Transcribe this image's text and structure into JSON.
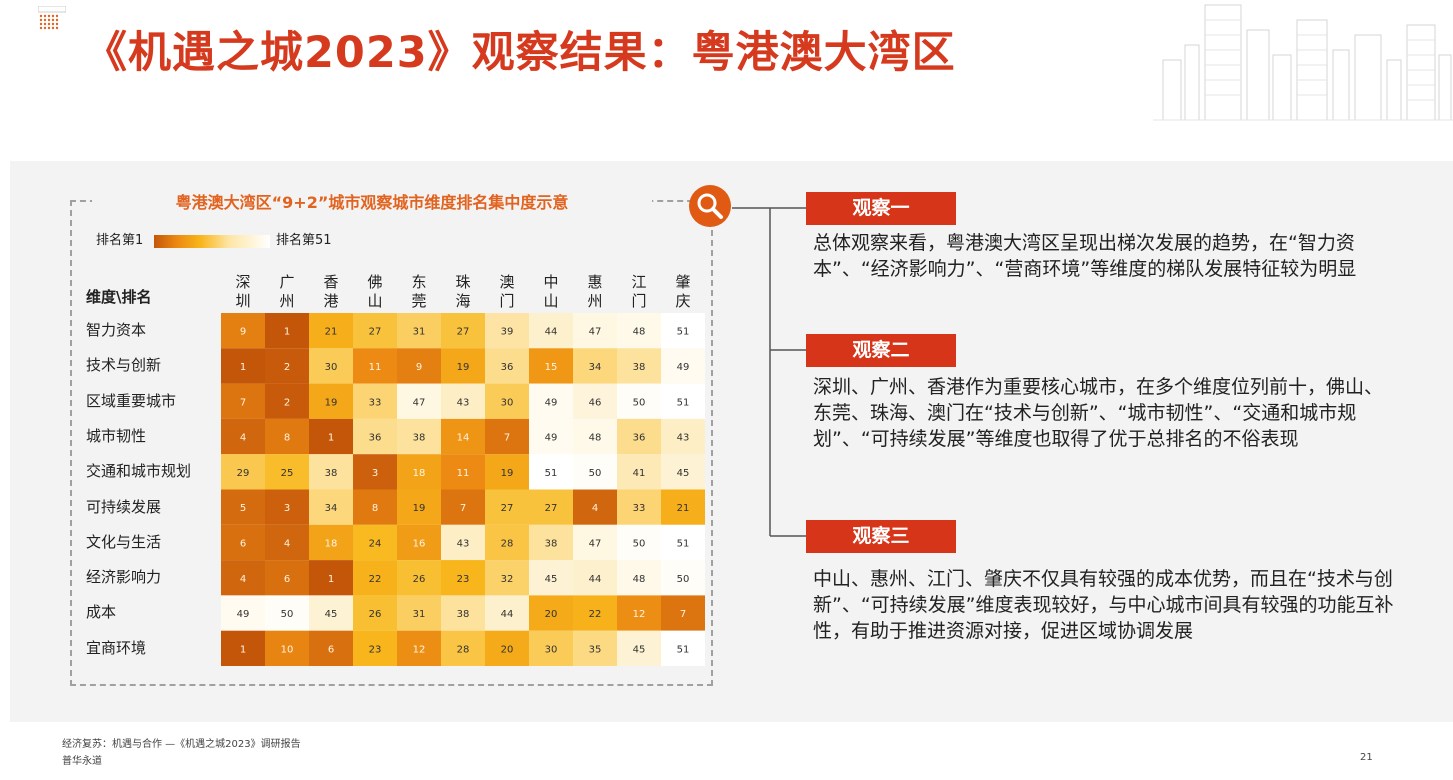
{
  "title": "《机遇之城2023》观察结果：粤港澳大湾区",
  "chart_data": {
    "type": "heatmap",
    "title": "粤港澳大湾区“9+2”城市观察城市维度排名集中度示意",
    "corner_label": "维度\\排名",
    "legend": {
      "first": "排名第1",
      "last": "排名第51"
    },
    "columns": [
      "深圳",
      "广州",
      "香港",
      "佛山",
      "东莞",
      "珠海",
      "澳门",
      "中山",
      "惠州",
      "江门",
      "肇庆"
    ],
    "rows": [
      "智力资本",
      "技术与创新",
      "区域重要城市",
      "城市韧性",
      "交通和城市规划",
      "可持续发展",
      "文化与生活",
      "经济影响力",
      "成本",
      "宜商环境"
    ],
    "values": [
      [
        9,
        1,
        21,
        27,
        31,
        27,
        39,
        44,
        47,
        48,
        51
      ],
      [
        1,
        2,
        30,
        11,
        9,
        19,
        36,
        15,
        34,
        38,
        49
      ],
      [
        7,
        2,
        19,
        33,
        47,
        43,
        30,
        49,
        46,
        50,
        51
      ],
      [
        4,
        8,
        1,
        36,
        38,
        14,
        7,
        49,
        48,
        36,
        43
      ],
      [
        29,
        25,
        38,
        3,
        18,
        11,
        19,
        51,
        50,
        41,
        45
      ],
      [
        5,
        3,
        34,
        8,
        19,
        7,
        27,
        27,
        4,
        33,
        21
      ],
      [
        6,
        4,
        18,
        24,
        16,
        43,
        28,
        38,
        47,
        50,
        51
      ],
      [
        4,
        6,
        1,
        22,
        26,
        23,
        32,
        45,
        44,
        48,
        50
      ],
      [
        49,
        50,
        45,
        26,
        31,
        38,
        44,
        20,
        22,
        12,
        7
      ],
      [
        1,
        10,
        6,
        23,
        12,
        28,
        20,
        30,
        35,
        45,
        51
      ]
    ],
    "scale": [
      1,
      51
    ]
  },
  "observations": [
    {
      "label": "观察一",
      "text": "总体观察来看，粤港澳大湾区呈现出梯次发展的趋势，在“智力资本”、“经济影响力”、“营商环境”等维度的梯队发展特征较为明显"
    },
    {
      "label": "观察二",
      "text": "深圳、广州、香港作为重要核心城市，在多个维度位列前十，佛山、东莞、珠海、澳门在“技术与创新”、“城市韧性”、“交通和城市规划”、“可持续发展”等维度也取得了优于总排名的不俗表现"
    },
    {
      "label": "观察三",
      "text": "中山、惠州、江门、肇庆不仅具有较强的成本优势，而且在“技术与创新”、“可持续发展”维度表现较好，与中心城市间具有较强的功能互补性，有助于推进资源对接，促进区域协调发展"
    }
  ],
  "footer": {
    "line1": "经济复苏：机遇与合作 —《机遇之城2023》调研报告",
    "line2": "普华永道",
    "page_number": "21"
  },
  "colors": {
    "title": "#d63a1e",
    "chart_title": "#e2631f",
    "tab": "#d7351a",
    "magnifier": "#e05a14",
    "panel": "#f3f3f3"
  },
  "icons": {
    "magnifier": "magnifier-icon",
    "logo": "dot-grid-logo",
    "skyline": "city-skyline-graphic"
  }
}
